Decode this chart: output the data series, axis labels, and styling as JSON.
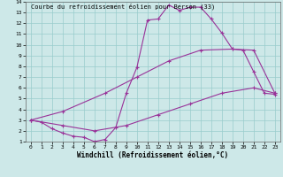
{
  "title": "Courbe du refroidissement éolien pour Berson (33)",
  "xlabel": "Windchill (Refroidissement éolien,°C)",
  "bg_color": "#cde8e8",
  "line_color": "#993399",
  "grid_color": "#99cccc",
  "xlim": [
    -0.5,
    23.5
  ],
  "ylim": [
    1,
    14
  ],
  "xticks": [
    0,
    1,
    2,
    3,
    4,
    5,
    6,
    7,
    8,
    9,
    10,
    11,
    12,
    13,
    14,
    15,
    16,
    17,
    18,
    19,
    20,
    21,
    22,
    23
  ],
  "yticks": [
    1,
    2,
    3,
    4,
    5,
    6,
    7,
    8,
    9,
    10,
    11,
    12,
    13,
    14
  ],
  "line1_x": [
    0,
    1,
    2,
    3,
    4,
    5,
    6,
    7,
    8,
    9,
    10,
    11,
    12,
    13,
    14,
    15,
    16,
    17,
    18,
    19,
    20,
    21,
    22,
    23
  ],
  "line1_y": [
    3.0,
    2.8,
    2.2,
    1.8,
    1.5,
    1.4,
    1.0,
    1.2,
    2.3,
    5.5,
    7.9,
    12.3,
    12.4,
    13.7,
    13.2,
    13.5,
    13.5,
    12.4,
    11.1,
    9.6,
    9.5,
    7.5,
    5.5,
    5.4
  ],
  "line2_x": [
    0,
    3,
    7,
    10,
    13,
    16,
    19,
    21,
    23
  ],
  "line2_y": [
    3.0,
    3.8,
    5.5,
    7.0,
    8.5,
    9.5,
    9.6,
    9.5,
    5.5
  ],
  "line3_x": [
    0,
    3,
    6,
    9,
    12,
    15,
    18,
    21,
    23
  ],
  "line3_y": [
    3.0,
    2.5,
    2.0,
    2.5,
    3.5,
    4.5,
    5.5,
    6.0,
    5.5
  ],
  "title_fontsize": 5.0,
  "xlabel_fontsize": 5.5,
  "tick_fontsize": 4.5,
  "marker": "+"
}
